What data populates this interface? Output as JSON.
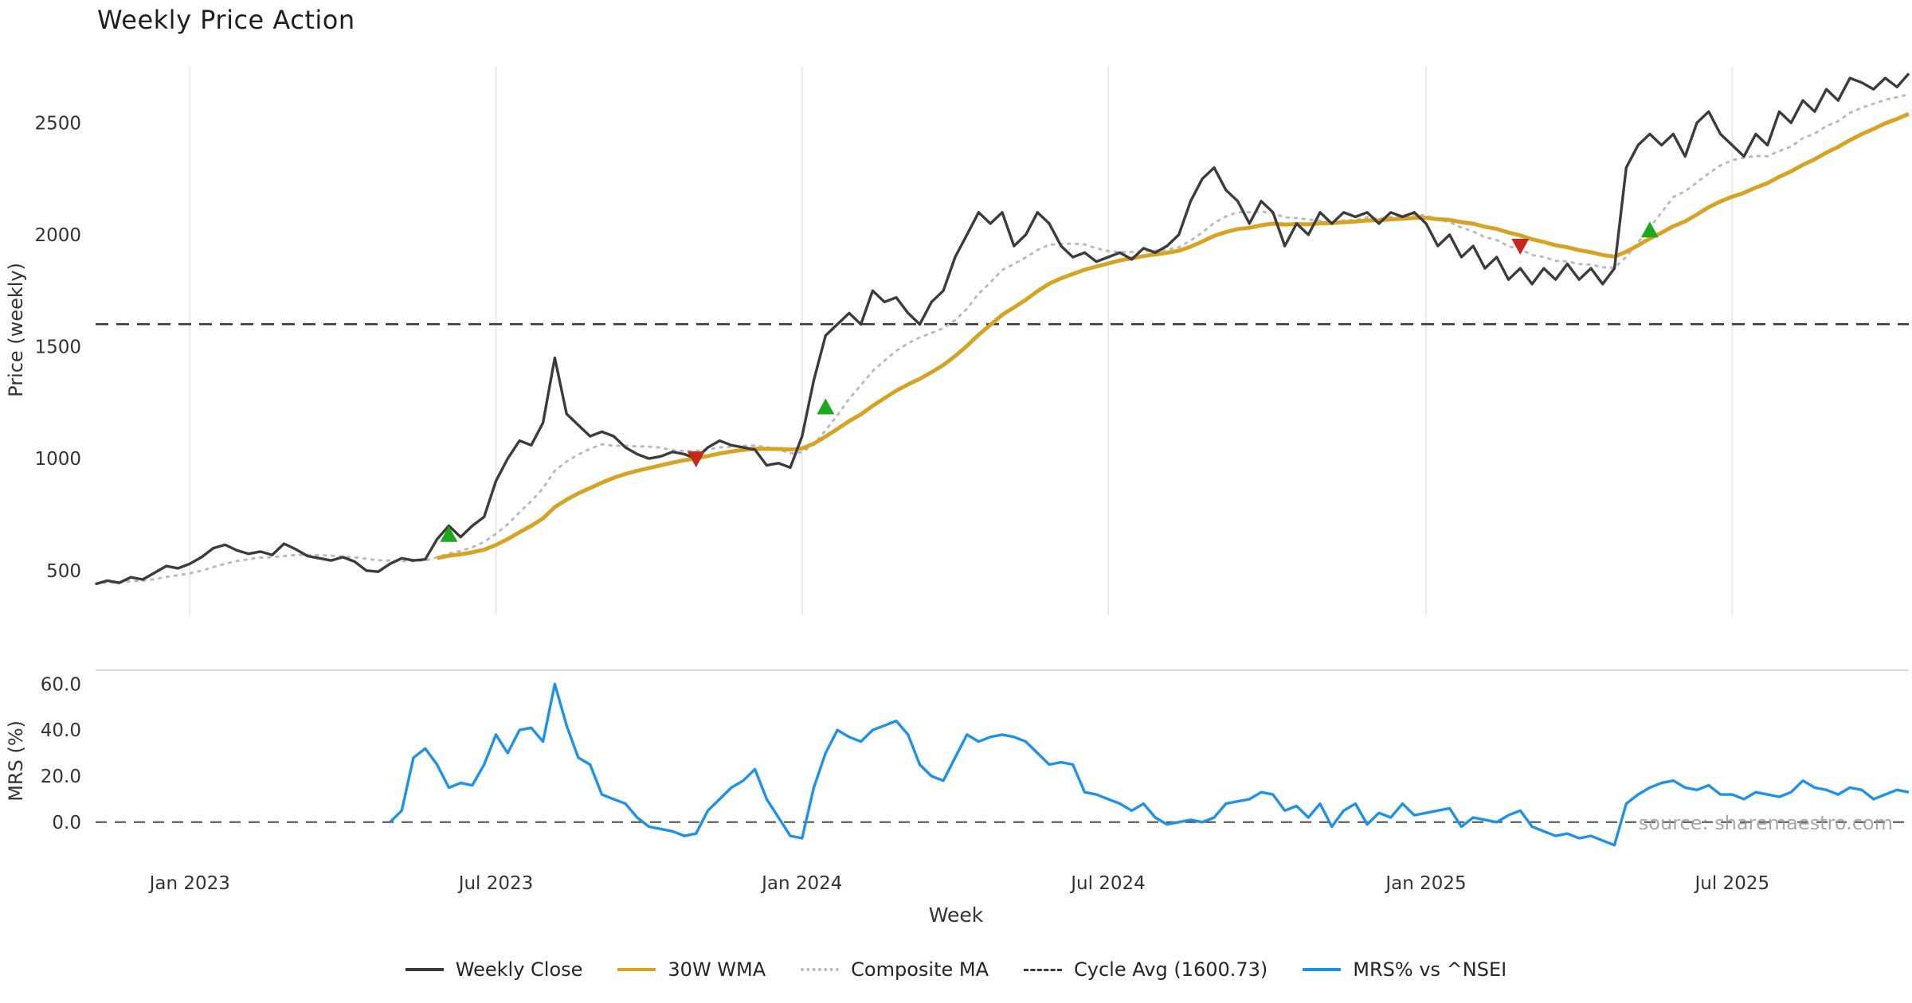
{
  "chart_data": {
    "type": "line",
    "title": "Weekly Price Action",
    "xlabel": "Week",
    "watermark": "source: sharemaestro.com",
    "panels": [
      {
        "name": "price",
        "ylabel": "Price (weekly)",
        "ylim": [
          300,
          2750
        ],
        "yticks": [
          {
            "v": 500,
            "label": "500"
          },
          {
            "v": 1000,
            "label": "1000"
          },
          {
            "v": 1500,
            "label": "1500"
          },
          {
            "v": 2000,
            "label": "2000"
          },
          {
            "v": 2500,
            "label": "2500"
          }
        ]
      },
      {
        "name": "mrs",
        "ylabel": "MRS (%)",
        "ylim": [
          -16,
          66
        ],
        "yticks": [
          {
            "v": 0,
            "label": "0.0"
          },
          {
            "v": 20,
            "label": "20.0"
          },
          {
            "v": 40,
            "label": "40.0"
          },
          {
            "v": 60,
            "label": "60.0"
          }
        ]
      }
    ],
    "x": {
      "unit": "week-index",
      "total_weeks": 155,
      "ticks": [
        {
          "week": 8,
          "label": "Jan 2023"
        },
        {
          "week": 34,
          "label": "Jul 2023"
        },
        {
          "week": 60,
          "label": "Jan 2024"
        },
        {
          "week": 86,
          "label": "Jul 2024"
        },
        {
          "week": 113,
          "label": "Jan 2025"
        },
        {
          "week": 139,
          "label": "Jul 2025"
        }
      ]
    },
    "series": [
      {
        "key": "close",
        "name": "Weekly Close",
        "panel": "price",
        "style": "solid",
        "color": "#3c3c3c",
        "values": [
          440,
          455,
          445,
          470,
          460,
          490,
          520,
          510,
          530,
          560,
          600,
          615,
          590,
          575,
          585,
          570,
          620,
          595,
          565,
          555,
          545,
          560,
          540,
          500,
          495,
          530,
          555,
          545,
          550,
          640,
          700,
          650,
          700,
          740,
          900,
          1000,
          1080,
          1060,
          1160,
          1450,
          1200,
          1150,
          1100,
          1120,
          1100,
          1050,
          1020,
          1000,
          1010,
          1030,
          1020,
          1000,
          1050,
          1080,
          1060,
          1050,
          1040,
          970,
          980,
          960,
          1100,
          1350,
          1550,
          1600,
          1650,
          1600,
          1750,
          1700,
          1720,
          1650,
          1600,
          1700,
          1750,
          1900,
          2000,
          2100,
          2050,
          2100,
          1950,
          2000,
          2100,
          2050,
          1950,
          1900,
          1920,
          1880,
          1900,
          1920,
          1890,
          1940,
          1920,
          1950,
          2000,
          2150,
          2250,
          2300,
          2200,
          2150,
          2050,
          2150,
          2100,
          1950,
          2050,
          2000,
          2100,
          2050,
          2100,
          2080,
          2100,
          2050,
          2100,
          2080,
          2100,
          2050,
          1950,
          2000,
          1900,
          1950,
          1850,
          1900,
          1800,
          1850,
          1780,
          1850,
          1800,
          1870,
          1800,
          1850,
          1780,
          1850,
          2300,
          2400,
          2450,
          2400,
          2450,
          2350,
          2500,
          2550,
          2450,
          2400,
          2350,
          2450,
          2400,
          2550,
          2500,
          2600,
          2550,
          2650,
          2600,
          2700,
          2680,
          2650,
          2700,
          2660,
          2720
        ]
      },
      {
        "key": "wma30",
        "name": "30W WMA",
        "panel": "price",
        "style": "solid",
        "color": "#d6a425",
        "derived": {
          "method": "wma",
          "window": 30,
          "of": "close"
        }
      },
      {
        "key": "composite",
        "name": "Composite MA",
        "panel": "price",
        "style": "dotted",
        "color": "#bbbbbb",
        "derived": {
          "method": "mean-of-smas",
          "windows": [
            5,
            10,
            20
          ],
          "of": "close"
        }
      },
      {
        "key": "cycle",
        "name": "Cycle Avg (1600.73)",
        "panel": "price",
        "style": "dashed",
        "color": "#3b3b3b",
        "value": 1600.73
      },
      {
        "key": "mrs",
        "name": "MRS% vs ^NSEI",
        "panel": "mrs",
        "style": "solid",
        "color": "#1d92e8",
        "values": [
          null,
          null,
          null,
          null,
          null,
          null,
          null,
          null,
          null,
          null,
          null,
          null,
          null,
          null,
          null,
          null,
          null,
          null,
          null,
          null,
          null,
          null,
          null,
          null,
          null,
          0,
          5,
          28,
          32,
          25,
          15,
          17,
          16,
          25,
          38,
          30,
          40,
          41,
          35,
          60,
          42,
          28,
          25,
          12,
          10,
          8,
          2,
          -2,
          -3,
          -4,
          -6,
          -5,
          5,
          10,
          15,
          18,
          23,
          10,
          2,
          -6,
          -7,
          15,
          30,
          40,
          37,
          35,
          40,
          42,
          44,
          38,
          25,
          20,
          18,
          28,
          38,
          35,
          37,
          38,
          37,
          35,
          30,
          25,
          26,
          25,
          13,
          12,
          10,
          8,
          5,
          8,
          2,
          -1,
          0,
          1,
          0,
          2,
          8,
          9,
          10,
          13,
          12,
          5,
          7,
          2,
          8,
          -2,
          5,
          8,
          -1,
          4,
          2,
          8,
          3,
          4,
          5,
          6,
          -2,
          2,
          1,
          0,
          3,
          5,
          -2,
          -4,
          -6,
          -5,
          -7,
          -6,
          -8,
          -10,
          8,
          12,
          15,
          17,
          18,
          15,
          14,
          16,
          12,
          12,
          10,
          13,
          12,
          11,
          13,
          18,
          15,
          14,
          12,
          15,
          14,
          10,
          12,
          14,
          13
        ]
      }
    ],
    "markers": {
      "buy": {
        "shape": "triangle-up",
        "color": "#1fa81f",
        "points": [
          {
            "week": 30,
            "price": 660
          },
          {
            "week": 62,
            "price": 1230
          },
          {
            "week": 132,
            "price": 2020
          }
        ]
      },
      "sell": {
        "shape": "triangle-down",
        "color": "#c8251d",
        "points": [
          {
            "week": 51,
            "price": 1000
          },
          {
            "week": 121,
            "price": 1950
          }
        ]
      }
    },
    "legend_position": "bottom-center"
  }
}
